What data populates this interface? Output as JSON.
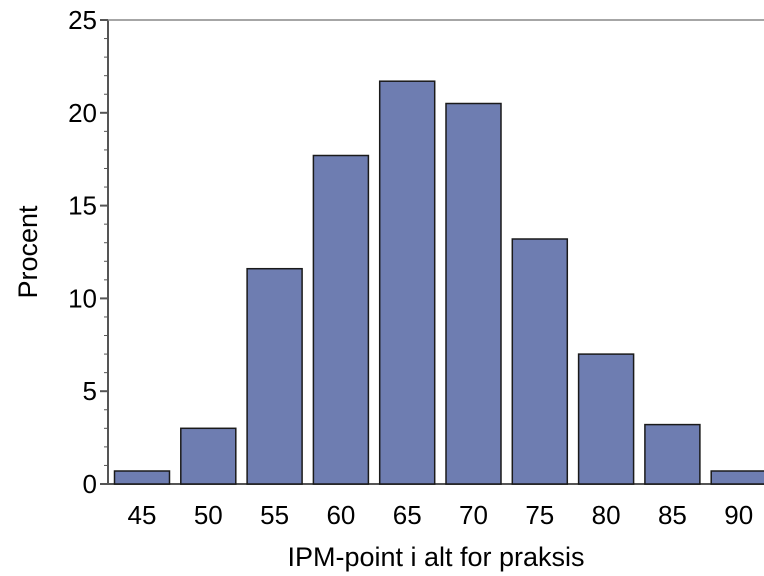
{
  "chart_data": {
    "type": "bar",
    "title": "",
    "xlabel": "IPM-point i alt for praksis",
    "ylabel": "Procent",
    "categories": [
      "45",
      "50",
      "55",
      "60",
      "65",
      "70",
      "75",
      "80",
      "85",
      "90"
    ],
    "values": [
      0.7,
      3.0,
      11.6,
      17.7,
      21.7,
      20.5,
      13.2,
      7.0,
      3.2,
      0.7
    ],
    "ylim": [
      0,
      25
    ],
    "yticks": [
      0,
      5,
      10,
      15,
      20,
      25
    ],
    "grid": false,
    "bar_color": "#6e7db1",
    "bar_edge_color": "#1a1a1a"
  }
}
